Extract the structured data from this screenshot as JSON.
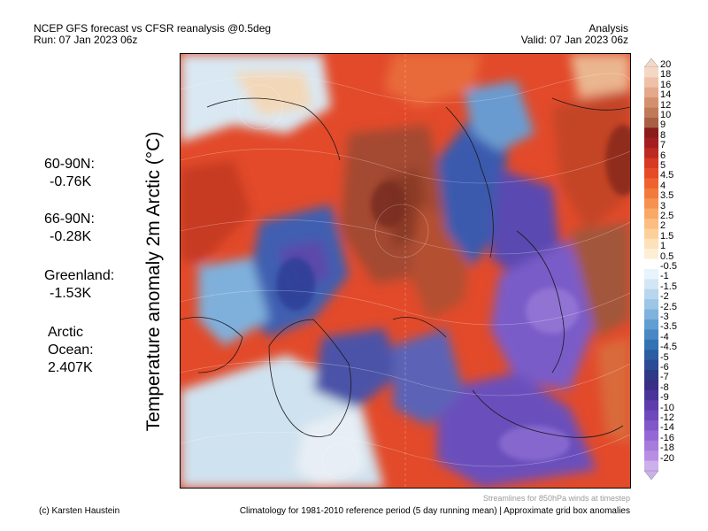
{
  "header": {
    "title": "NCEP GFS forecast vs CFSR reanalysis @0.5deg",
    "run": "Run: 07 Jan 2023 06z",
    "analysis": "Analysis",
    "valid": "Valid: 07 Jan 2023 06z"
  },
  "stats": [
    {
      "label": "60-90N:",
      "value": "-0.76K"
    },
    {
      "label": "66-90N:",
      "value": "-0.28K"
    },
    {
      "label": "Greenland:",
      "value": "-1.53K"
    },
    {
      "label": "Arctic",
      "label2": "Ocean:",
      "value": "2.407K"
    }
  ],
  "map": {
    "y_label": "Temperature anomaly 2m Arctic (°C)"
  },
  "colorbar": {
    "ticks": [
      "20",
      "18",
      "16",
      "14",
      "12",
      "10",
      "9",
      "8",
      "7",
      "6",
      "5",
      "4.5",
      "4",
      "3.5",
      "3",
      "2.5",
      "2",
      "1.5",
      "1",
      "0.5",
      "-0.5",
      "-1",
      "-1.5",
      "-2",
      "-2.5",
      "-3",
      "-3.5",
      "-4",
      "-4.5",
      "-5",
      "-6",
      "-7",
      "-8",
      "-9",
      "-10",
      "-12",
      "-14",
      "-16",
      "-18",
      "-20"
    ],
    "colors": [
      "#f5d7c6",
      "#eec1a8",
      "#e3a98a",
      "#d4906e",
      "#c07a58",
      "#a85f44",
      "#8b1c1c",
      "#a41e20",
      "#bd2a22",
      "#d63a22",
      "#e54b27",
      "#ee6230",
      "#f27a3b",
      "#f69250",
      "#f9a866",
      "#fbbd80",
      "#fcd09b",
      "#fde1b8",
      "#fdeed6",
      "#ffffff",
      "#e9f3fb",
      "#d3e6f5",
      "#b8d6ee",
      "#9cc5e6",
      "#7fb2dc",
      "#629ed1",
      "#4888c3",
      "#3372b3",
      "#2a5ea3",
      "#2b4b95",
      "#2e3a86",
      "#3a2f86",
      "#4b3499",
      "#5d3dab",
      "#6f48bc",
      "#8257c9",
      "#9468d4",
      "#a67bdc",
      "#b88ee4",
      "#cbb0ec"
    ]
  },
  "footer": {
    "credit": "(c) Karsten Haustein",
    "streamlines": "Streamlines for 850hPa winds at timestep",
    "climatology": "Climatology for 1981-2010 reference period (5 day running mean) | Approximate grid box anomalies"
  }
}
